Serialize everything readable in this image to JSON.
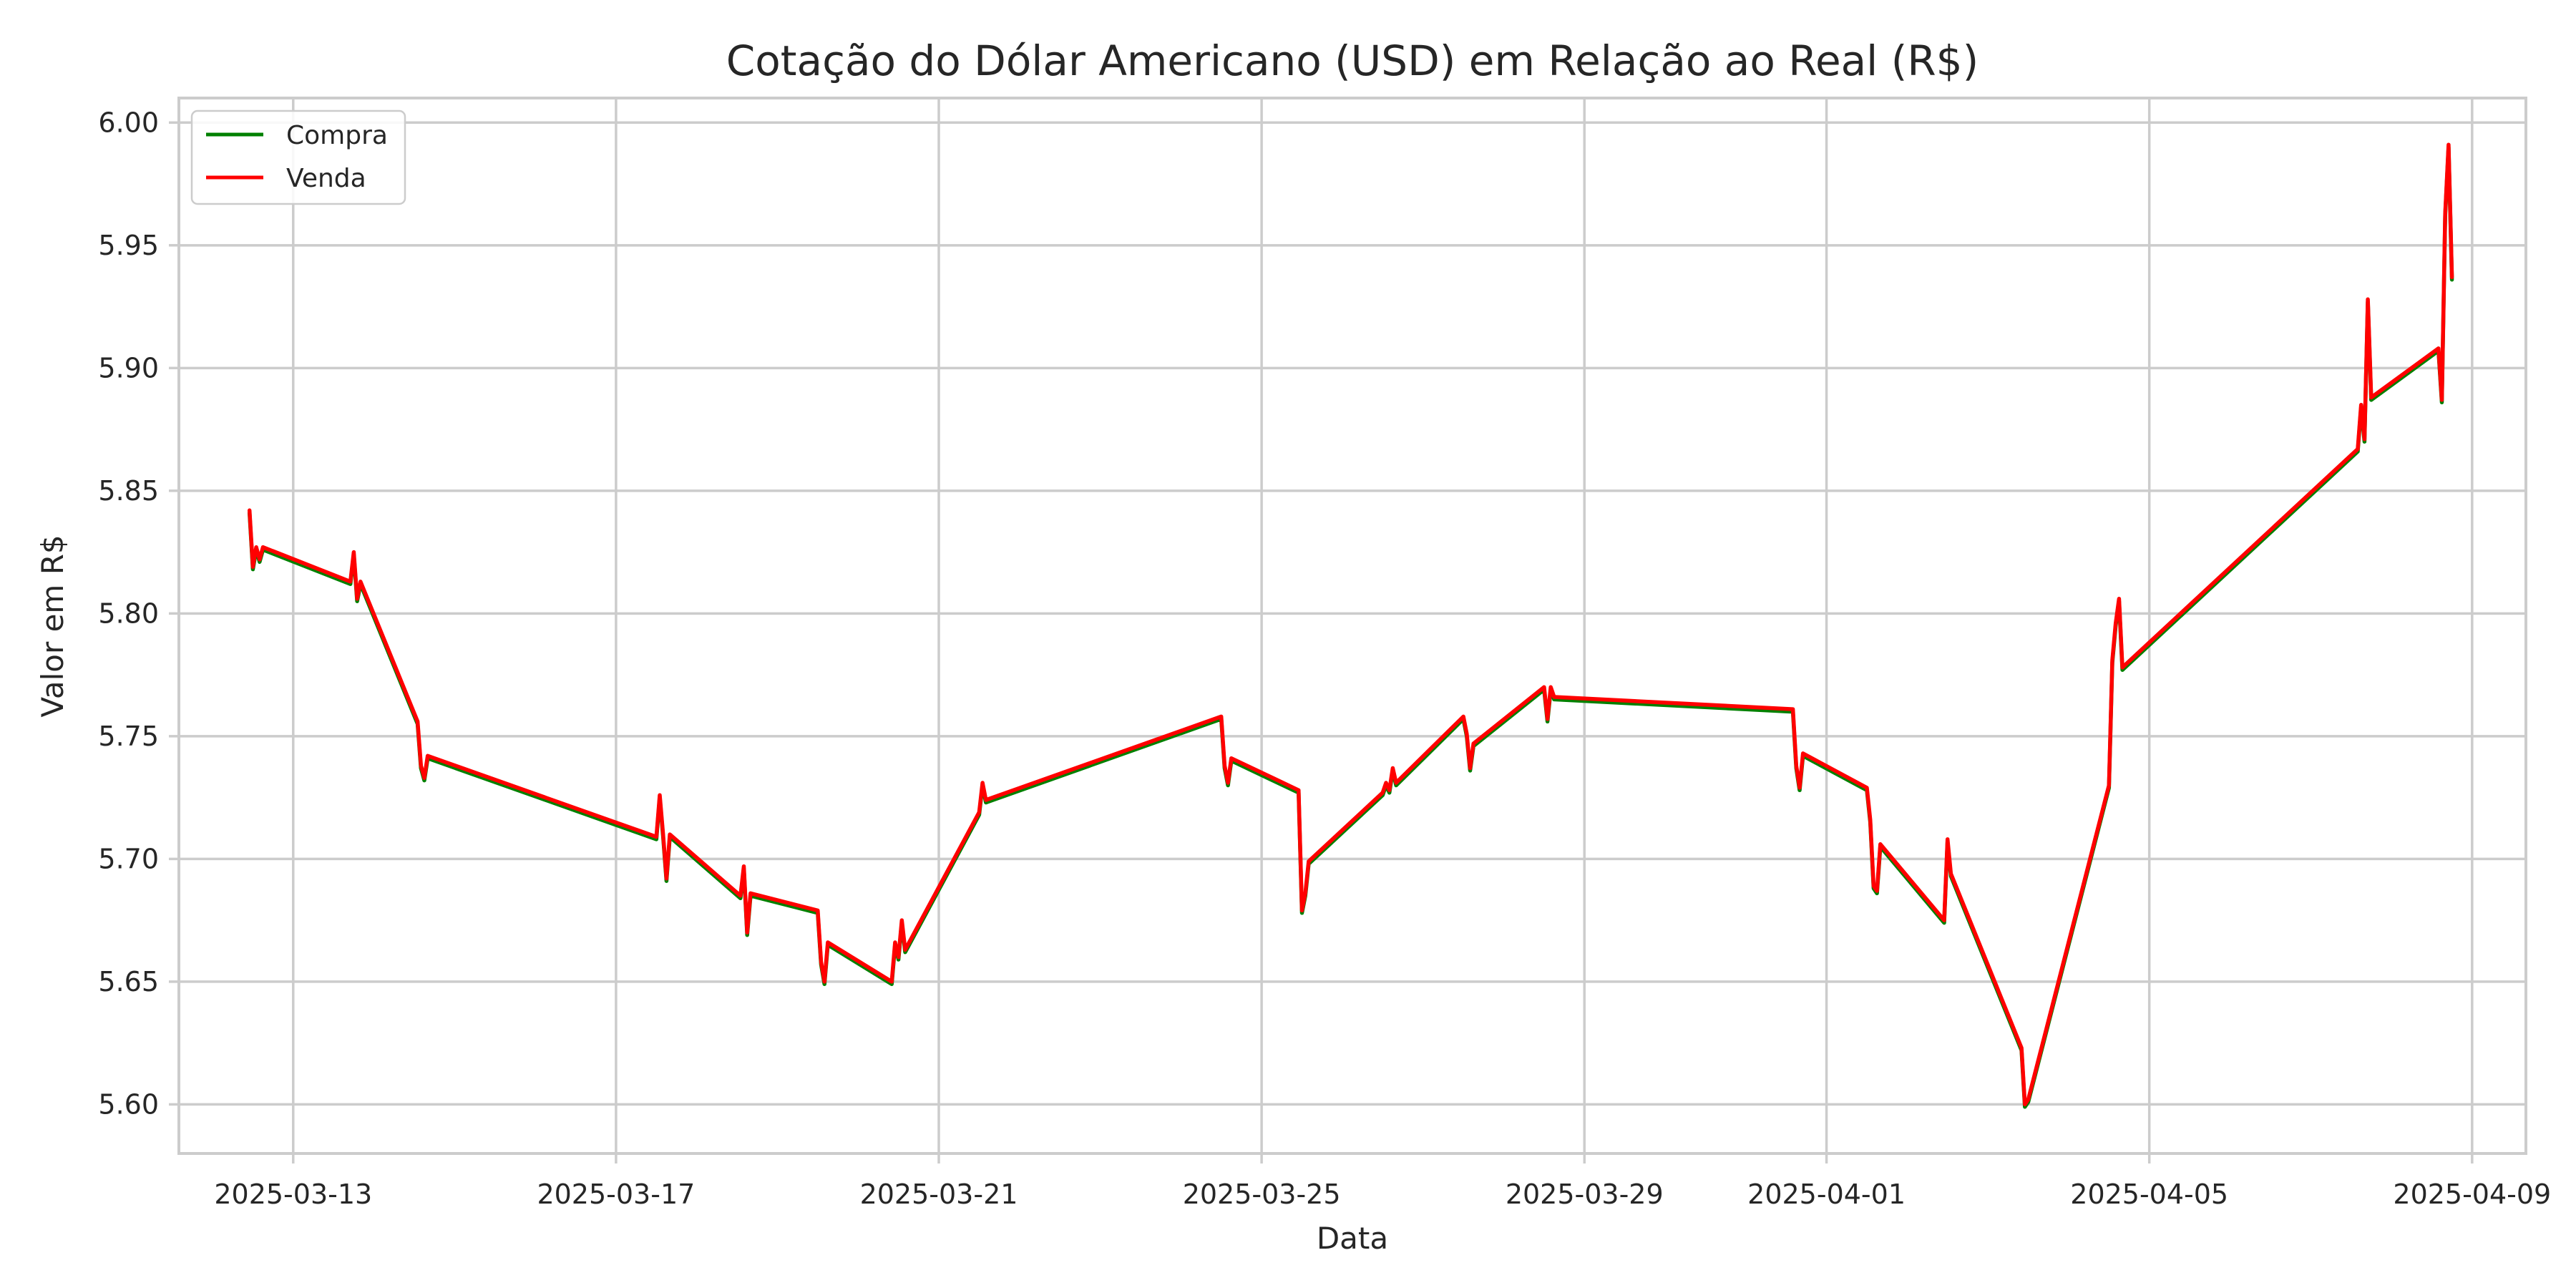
{
  "chart_data": {
    "type": "line",
    "title": "Cotação do Dólar Americano (USD) em Relação ao Real (R$)",
    "xlabel": "Data",
    "ylabel": "Valor em R$",
    "xlim": [
      "2025-03-11T14:00",
      "2025-04-09T16:00"
    ],
    "ylim": [
      5.58,
      6.01
    ],
    "x_ticks": [
      "2025-03-13",
      "2025-03-17",
      "2025-03-21",
      "2025-03-25",
      "2025-03-29",
      "2025-04-01",
      "2025-04-05",
      "2025-04-09"
    ],
    "y_ticks": [
      "5.60",
      "5.65",
      "5.70",
      "5.75",
      "5.80",
      "5.85",
      "5.90",
      "5.95",
      "6.00"
    ],
    "grid": true,
    "legend_position": "top-left",
    "series": [
      {
        "name": "Compra",
        "color": "#008000",
        "points": [
          [
            "2025-03-12T11:00",
            5.841
          ],
          [
            "2025-03-12T12:00",
            5.818
          ],
          [
            "2025-03-12T13:00",
            5.826
          ],
          [
            "2025-03-12T14:00",
            5.821
          ],
          [
            "2025-03-12T15:00",
            5.826
          ],
          [
            "2025-03-13T17:00",
            5.812
          ],
          [
            "2025-03-13T18:00",
            5.824
          ],
          [
            "2025-03-13T19:00",
            5.805
          ],
          [
            "2025-03-13T20:00",
            5.812
          ],
          [
            "2025-03-14T13:00",
            5.755
          ],
          [
            "2025-03-14T14:00",
            5.737
          ],
          [
            "2025-03-14T15:00",
            5.732
          ],
          [
            "2025-03-14T16:00",
            5.741
          ],
          [
            "2025-03-17T12:00",
            5.708
          ],
          [
            "2025-03-17T13:00",
            5.725
          ],
          [
            "2025-03-17T14:00",
            5.709
          ],
          [
            "2025-03-17T15:00",
            5.691
          ],
          [
            "2025-03-17T16:00",
            5.709
          ],
          [
            "2025-03-18T13:00",
            5.684
          ],
          [
            "2025-03-18T14:00",
            5.696
          ],
          [
            "2025-03-18T15:00",
            5.669
          ],
          [
            "2025-03-18T16:00",
            5.685
          ],
          [
            "2025-03-19T12:00",
            5.678
          ],
          [
            "2025-03-19T13:00",
            5.657
          ],
          [
            "2025-03-19T14:00",
            5.649
          ],
          [
            "2025-03-19T15:00",
            5.665
          ],
          [
            "2025-03-20T10:00",
            5.649
          ],
          [
            "2025-03-20T11:00",
            5.665
          ],
          [
            "2025-03-20T12:00",
            5.659
          ],
          [
            "2025-03-20T13:00",
            5.674
          ],
          [
            "2025-03-20T14:00",
            5.662
          ],
          [
            "2025-03-21T12:00",
            5.718
          ],
          [
            "2025-03-21T13:00",
            5.73
          ],
          [
            "2025-03-21T14:00",
            5.723
          ],
          [
            "2025-03-24T12:00",
            5.757
          ],
          [
            "2025-03-24T13:00",
            5.737
          ],
          [
            "2025-03-24T14:00",
            5.73
          ],
          [
            "2025-03-24T15:00",
            5.74
          ],
          [
            "2025-03-25T11:00",
            5.727
          ],
          [
            "2025-03-25T12:00",
            5.678
          ],
          [
            "2025-03-25T13:00",
            5.685
          ],
          [
            "2025-03-25T14:00",
            5.698
          ],
          [
            "2025-03-26T12:00",
            5.726
          ],
          [
            "2025-03-26T13:00",
            5.73
          ],
          [
            "2025-03-26T14:00",
            5.727
          ],
          [
            "2025-03-26T15:00",
            5.736
          ],
          [
            "2025-03-26T16:00",
            5.73
          ],
          [
            "2025-03-27T12:00",
            5.757
          ],
          [
            "2025-03-27T13:00",
            5.75
          ],
          [
            "2025-03-27T14:00",
            5.736
          ],
          [
            "2025-03-27T15:00",
            5.746
          ],
          [
            "2025-03-28T12:00",
            5.769
          ],
          [
            "2025-03-28T13:00",
            5.756
          ],
          [
            "2025-03-28T14:00",
            5.769
          ],
          [
            "2025-03-28T15:00",
            5.765
          ],
          [
            "2025-03-31T14:00",
            5.76
          ],
          [
            "2025-03-31T15:00",
            5.737
          ],
          [
            "2025-03-31T16:00",
            5.728
          ],
          [
            "2025-03-31T17:00",
            5.742
          ],
          [
            "2025-04-01T12:00",
            5.728
          ],
          [
            "2025-04-01T13:00",
            5.715
          ],
          [
            "2025-04-01T14:00",
            5.688
          ],
          [
            "2025-04-01T15:00",
            5.686
          ],
          [
            "2025-04-01T16:00",
            5.705
          ],
          [
            "2025-04-02T11:00",
            5.674
          ],
          [
            "2025-04-02T12:00",
            5.707
          ],
          [
            "2025-04-02T13:00",
            5.693
          ],
          [
            "2025-04-03T10:00",
            5.622
          ],
          [
            "2025-04-03T11:00",
            5.599
          ],
          [
            "2025-04-03T12:00",
            5.601
          ],
          [
            "2025-04-04T12:00",
            5.729
          ],
          [
            "2025-04-04T13:00",
            5.78
          ],
          [
            "2025-04-04T14:00",
            5.795
          ],
          [
            "2025-04-04T15:00",
            5.805
          ],
          [
            "2025-04-04T16:00",
            5.777
          ],
          [
            "2025-04-07T14:00",
            5.866
          ],
          [
            "2025-04-07T15:00",
            5.884
          ],
          [
            "2025-04-07T16:00",
            5.87
          ],
          [
            "2025-04-07T17:00",
            5.927
          ],
          [
            "2025-04-07T18:00",
            5.887
          ],
          [
            "2025-04-08T14:00",
            5.907
          ],
          [
            "2025-04-08T15:00",
            5.886
          ],
          [
            "2025-04-08T16:00",
            5.962
          ],
          [
            "2025-04-08T17:00",
            5.99
          ],
          [
            "2025-04-08T18:00",
            5.936
          ]
        ]
      },
      {
        "name": "Venda",
        "color": "#ff0000",
        "points": [
          [
            "2025-03-12T11:00",
            5.842
          ],
          [
            "2025-03-12T12:00",
            5.819
          ],
          [
            "2025-03-12T13:00",
            5.827
          ],
          [
            "2025-03-12T14:00",
            5.822
          ],
          [
            "2025-03-12T15:00",
            5.827
          ],
          [
            "2025-03-13T17:00",
            5.813
          ],
          [
            "2025-03-13T18:00",
            5.825
          ],
          [
            "2025-03-13T19:00",
            5.806
          ],
          [
            "2025-03-13T20:00",
            5.813
          ],
          [
            "2025-03-14T13:00",
            5.756
          ],
          [
            "2025-03-14T14:00",
            5.738
          ],
          [
            "2025-03-14T15:00",
            5.733
          ],
          [
            "2025-03-14T16:00",
            5.742
          ],
          [
            "2025-03-17T12:00",
            5.709
          ],
          [
            "2025-03-17T13:00",
            5.726
          ],
          [
            "2025-03-17T14:00",
            5.71
          ],
          [
            "2025-03-17T15:00",
            5.692
          ],
          [
            "2025-03-17T16:00",
            5.71
          ],
          [
            "2025-03-18T13:00",
            5.685
          ],
          [
            "2025-03-18T14:00",
            5.697
          ],
          [
            "2025-03-18T15:00",
            5.67
          ],
          [
            "2025-03-18T16:00",
            5.686
          ],
          [
            "2025-03-19T12:00",
            5.679
          ],
          [
            "2025-03-19T13:00",
            5.658
          ],
          [
            "2025-03-19T14:00",
            5.65
          ],
          [
            "2025-03-19T15:00",
            5.666
          ],
          [
            "2025-03-20T10:00",
            5.65
          ],
          [
            "2025-03-20T11:00",
            5.666
          ],
          [
            "2025-03-20T12:00",
            5.66
          ],
          [
            "2025-03-20T13:00",
            5.675
          ],
          [
            "2025-03-20T14:00",
            5.663
          ],
          [
            "2025-03-21T12:00",
            5.719
          ],
          [
            "2025-03-21T13:00",
            5.731
          ],
          [
            "2025-03-21T14:00",
            5.724
          ],
          [
            "2025-03-24T12:00",
            5.758
          ],
          [
            "2025-03-24T13:00",
            5.738
          ],
          [
            "2025-03-24T14:00",
            5.731
          ],
          [
            "2025-03-24T15:00",
            5.741
          ],
          [
            "2025-03-25T11:00",
            5.728
          ],
          [
            "2025-03-25T12:00",
            5.679
          ],
          [
            "2025-03-25T13:00",
            5.686
          ],
          [
            "2025-03-25T14:00",
            5.699
          ],
          [
            "2025-03-26T12:00",
            5.727
          ],
          [
            "2025-03-26T13:00",
            5.731
          ],
          [
            "2025-03-26T14:00",
            5.728
          ],
          [
            "2025-03-26T15:00",
            5.737
          ],
          [
            "2025-03-26T16:00",
            5.731
          ],
          [
            "2025-03-27T12:00",
            5.758
          ],
          [
            "2025-03-27T13:00",
            5.751
          ],
          [
            "2025-03-27T14:00",
            5.737
          ],
          [
            "2025-03-27T15:00",
            5.747
          ],
          [
            "2025-03-28T12:00",
            5.77
          ],
          [
            "2025-03-28T13:00",
            5.757
          ],
          [
            "2025-03-28T14:00",
            5.77
          ],
          [
            "2025-03-28T15:00",
            5.766
          ],
          [
            "2025-03-31T14:00",
            5.761
          ],
          [
            "2025-03-31T15:00",
            5.738
          ],
          [
            "2025-03-31T16:00",
            5.729
          ],
          [
            "2025-03-31T17:00",
            5.743
          ],
          [
            "2025-04-01T12:00",
            5.729
          ],
          [
            "2025-04-01T13:00",
            5.716
          ],
          [
            "2025-04-01T14:00",
            5.689
          ],
          [
            "2025-04-01T15:00",
            5.687
          ],
          [
            "2025-04-01T16:00",
            5.706
          ],
          [
            "2025-04-02T11:00",
            5.675
          ],
          [
            "2025-04-02T12:00",
            5.708
          ],
          [
            "2025-04-02T13:00",
            5.694
          ],
          [
            "2025-04-03T10:00",
            5.623
          ],
          [
            "2025-04-03T11:00",
            5.6
          ],
          [
            "2025-04-03T12:00",
            5.602
          ],
          [
            "2025-04-04T12:00",
            5.73
          ],
          [
            "2025-04-04T13:00",
            5.781
          ],
          [
            "2025-04-04T14:00",
            5.796
          ],
          [
            "2025-04-04T15:00",
            5.806
          ],
          [
            "2025-04-04T16:00",
            5.778
          ],
          [
            "2025-04-07T14:00",
            5.867
          ],
          [
            "2025-04-07T15:00",
            5.885
          ],
          [
            "2025-04-07T16:00",
            5.871
          ],
          [
            "2025-04-07T17:00",
            5.928
          ],
          [
            "2025-04-07T18:00",
            5.888
          ],
          [
            "2025-04-08T14:00",
            5.908
          ],
          [
            "2025-04-08T15:00",
            5.887
          ],
          [
            "2025-04-08T16:00",
            5.963
          ],
          [
            "2025-04-08T17:00",
            5.991
          ],
          [
            "2025-04-08T18:00",
            5.937
          ]
        ]
      }
    ]
  }
}
